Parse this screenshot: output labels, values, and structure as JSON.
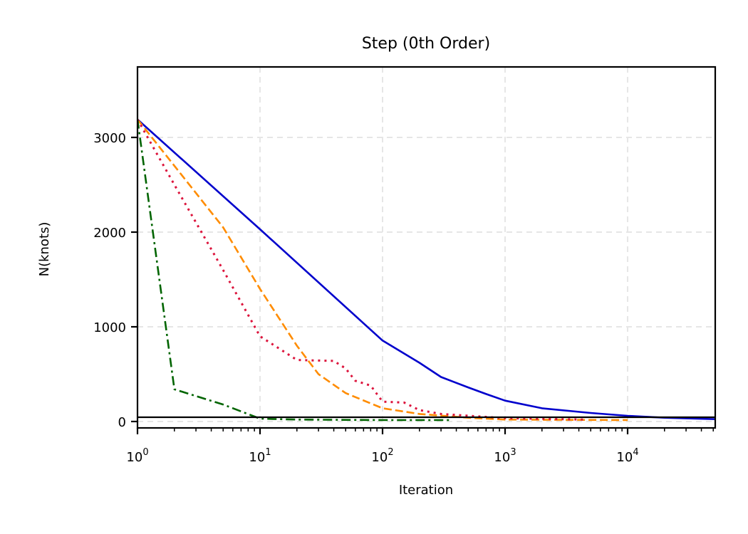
{
  "chart_data": {
    "type": "line",
    "title": "Step (0th Order)",
    "xlabel": "Iteration",
    "ylabel": "N(knots)",
    "xscale": "log",
    "xlim": [
      1,
      52000
    ],
    "ylim": [
      -80,
      3750
    ],
    "grid": true,
    "legend": null,
    "x_ticks": [
      {
        "base": "10",
        "exp": "0",
        "value": 1
      },
      {
        "base": "10",
        "exp": "1",
        "value": 10
      },
      {
        "base": "10",
        "exp": "2",
        "value": 100
      },
      {
        "base": "10",
        "exp": "3",
        "value": 1000
      },
      {
        "base": "10",
        "exp": "4",
        "value": 10000
      }
    ],
    "y_ticks": [
      {
        "label": "0",
        "value": 0
      },
      {
        "label": "1000",
        "value": 1000
      },
      {
        "label": "2000",
        "value": 2000
      },
      {
        "label": "3000",
        "value": 3000
      }
    ],
    "reference_line": {
      "y": 45,
      "color": "#000000",
      "style": "solid"
    },
    "series": [
      {
        "name": "blue-solid",
        "color": "#0000cc",
        "style": "solid",
        "points": [
          [
            1,
            3190
          ],
          [
            10,
            2030
          ],
          [
            100,
            855
          ],
          [
            200,
            620
          ],
          [
            300,
            470
          ],
          [
            500,
            360
          ],
          [
            700,
            290
          ],
          [
            1000,
            220
          ],
          [
            2000,
            140
          ],
          [
            5000,
            90
          ],
          [
            10000,
            60
          ],
          [
            20000,
            40
          ],
          [
            52000,
            25
          ]
        ]
      },
      {
        "name": "orange-dashed",
        "color": "#ff8c00",
        "style": "dashed",
        "points": [
          [
            1,
            3190
          ],
          [
            2,
            2700
          ],
          [
            5,
            2050
          ],
          [
            10,
            1400
          ],
          [
            20,
            800
          ],
          [
            30,
            500
          ],
          [
            50,
            300
          ],
          [
            100,
            140
          ],
          [
            200,
            80
          ],
          [
            500,
            40
          ],
          [
            1000,
            20
          ],
          [
            10000,
            15
          ]
        ]
      },
      {
        "name": "red-dotted",
        "color": "#dc143c",
        "style": "dotted",
        "points": [
          [
            1,
            3190
          ],
          [
            2,
            2500
          ],
          [
            5,
            1600
          ],
          [
            10,
            900
          ],
          [
            20,
            650
          ],
          [
            40,
            640
          ],
          [
            50,
            560
          ],
          [
            60,
            430
          ],
          [
            80,
            380
          ],
          [
            100,
            210
          ],
          [
            150,
            200
          ],
          [
            200,
            120
          ],
          [
            300,
            80
          ],
          [
            1000,
            35
          ],
          [
            4500,
            20
          ]
        ]
      },
      {
        "name": "green-dashdot",
        "color": "#006400",
        "style": "dashdot",
        "points": [
          [
            1,
            3190
          ],
          [
            2,
            340
          ],
          [
            5,
            180
          ],
          [
            10,
            30
          ],
          [
            20,
            20
          ],
          [
            100,
            15
          ],
          [
            350,
            15
          ]
        ]
      }
    ]
  }
}
